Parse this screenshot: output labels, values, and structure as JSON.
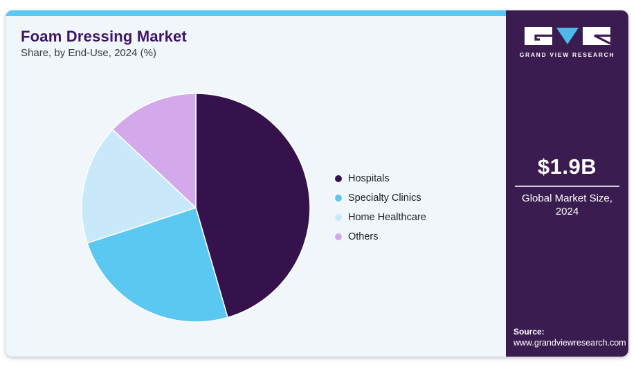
{
  "header": {
    "title": "Foam Dressing Market",
    "subtitle": "Share, by End-Use, 2024 (%)",
    "title_color": "#3e1464"
  },
  "card": {
    "main_bg": "#f0f6fa",
    "top_bar_color": "#5ac8f0"
  },
  "chart_data": {
    "type": "pie",
    "title": "Foam Dressing Market Share, by End-Use, 2024 (%)",
    "unit": "%",
    "start_angle_deg": 0,
    "direction": "clockwise",
    "legend_position": "right",
    "categories": [
      "Hospitals",
      "Specialty Clinics",
      "Home Healthcare",
      "Others"
    ],
    "values": [
      45.5,
      24.5,
      17.0,
      13.0
    ],
    "colors": [
      "#36124d",
      "#5bc8f2",
      "#c9e9fa",
      "#d3a9ec"
    ]
  },
  "sidebar": {
    "bg": "#3b1c51",
    "logo": {
      "brand": "GRAND VIEW RESEARCH",
      "triangle_color": "#4cb9e9",
      "block_color": "#ffffff"
    },
    "market_size": {
      "value": "$1.9B",
      "label": "Global Market Size, 2024"
    },
    "source": {
      "label": "Source:",
      "url": "www.grandviewresearch.com"
    }
  }
}
